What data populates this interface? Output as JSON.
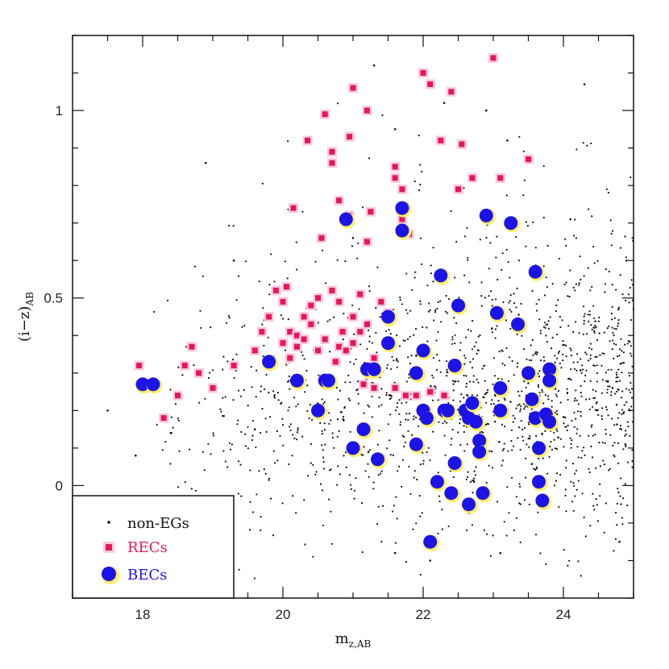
{
  "chart_data": {
    "type": "scatter",
    "title": "",
    "xlabel": "m",
    "xlabel_sub": "z,AB",
    "ylabel": "(i−z)",
    "ylabel_sub": "AB",
    "xlim": [
      17,
      25
    ],
    "ylim": [
      -0.3,
      1.2
    ],
    "x_ticks": [
      18,
      20,
      22,
      24
    ],
    "x_tick_labels": [
      "18",
      "20",
      "22",
      "24"
    ],
    "y_ticks": [
      0,
      0.5,
      1
    ],
    "y_tick_labels": [
      "0",
      "0.5",
      "1"
    ],
    "grid": false,
    "legend_position": "bottom-left",
    "colors": {
      "nonEG": "#111111",
      "REC": "#e8174f",
      "BEC": "#1c14e6",
      "rec_halo": "#ffc8e6",
      "bec_halo": "#ffee66"
    },
    "series": [
      {
        "name": "non-EGs",
        "marker": "dot",
        "generated_dense_cloud": true,
        "points": [
          [
            17.5,
            0.2
          ],
          [
            17.9,
            0.08
          ],
          [
            18.4,
            0.14
          ],
          [
            18.9,
            0.86
          ],
          [
            19.3,
            0.6
          ],
          [
            19.6,
            0.15
          ],
          [
            20.2,
            0.75
          ],
          [
            20.5,
            0.66
          ],
          [
            21.0,
            0.66
          ],
          [
            21.3,
            1.12
          ],
          [
            21.6,
            0.95
          ],
          [
            22.3,
            1.02
          ],
          [
            22.9,
            1.0
          ],
          [
            23.2,
            0.92
          ],
          [
            24.1,
            0.71
          ],
          [
            24.3,
            1.07
          ],
          [
            24.9,
            0.6
          ],
          [
            24.7,
            0.26
          ],
          [
            24.8,
            -0.15
          ],
          [
            22.1,
            -0.2
          ],
          [
            21.6,
            -0.18
          ],
          [
            23.1,
            -0.18
          ]
        ]
      },
      {
        "name": "RECs",
        "marker": "square",
        "points": [
          [
            17.95,
            0.32
          ],
          [
            18.3,
            0.18
          ],
          [
            18.5,
            0.24
          ],
          [
            18.6,
            0.32
          ],
          [
            18.7,
            0.37
          ],
          [
            18.8,
            0.3
          ],
          [
            19.0,
            0.26
          ],
          [
            19.3,
            0.32
          ],
          [
            19.6,
            0.36
          ],
          [
            19.7,
            0.41
          ],
          [
            19.8,
            0.45
          ],
          [
            19.9,
            0.52
          ],
          [
            20.0,
            0.49
          ],
          [
            20.0,
            0.38
          ],
          [
            20.05,
            0.53
          ],
          [
            20.1,
            0.41
          ],
          [
            20.1,
            0.34
          ],
          [
            20.2,
            0.37
          ],
          [
            20.2,
            0.4
          ],
          [
            20.15,
            0.74
          ],
          [
            20.3,
            0.39
          ],
          [
            20.3,
            0.45
          ],
          [
            20.35,
            0.92
          ],
          [
            20.4,
            0.48
          ],
          [
            20.5,
            0.5
          ],
          [
            20.5,
            0.36
          ],
          [
            20.55,
            0.66
          ],
          [
            20.6,
            0.99
          ],
          [
            20.6,
            0.39
          ],
          [
            20.7,
            0.89
          ],
          [
            20.7,
            0.86
          ],
          [
            20.7,
            0.52
          ],
          [
            20.75,
            0.33
          ],
          [
            20.8,
            0.37
          ],
          [
            20.8,
            0.76
          ],
          [
            20.8,
            0.49
          ],
          [
            20.85,
            0.41
          ],
          [
            20.9,
            0.36
          ],
          [
            20.95,
            0.72
          ],
          [
            20.95,
            0.93
          ],
          [
            21.0,
            1.06
          ],
          [
            21.0,
            0.45
          ],
          [
            21.0,
            0.38
          ],
          [
            21.1,
            0.41
          ],
          [
            21.1,
            0.51
          ],
          [
            21.15,
            0.27
          ],
          [
            21.2,
            1.0
          ],
          [
            21.2,
            0.43
          ],
          [
            21.2,
            0.65
          ],
          [
            21.25,
            0.73
          ],
          [
            21.3,
            0.26
          ],
          [
            21.3,
            0.34
          ],
          [
            21.4,
            0.49
          ],
          [
            21.5,
            0.46
          ],
          [
            21.6,
            0.26
          ],
          [
            21.7,
            0.71
          ],
          [
            21.7,
            0.79
          ],
          [
            21.75,
            0.24
          ],
          [
            21.8,
            0.67
          ],
          [
            21.9,
            0.24
          ],
          [
            22.0,
            1.1
          ],
          [
            22.1,
            1.07
          ],
          [
            22.1,
            0.25
          ],
          [
            22.25,
            0.92
          ],
          [
            22.3,
            0.24
          ],
          [
            22.4,
            1.05
          ],
          [
            22.5,
            0.79
          ],
          [
            22.55,
            0.91
          ],
          [
            22.7,
            0.82
          ],
          [
            23.0,
            1.14
          ],
          [
            23.1,
            0.82
          ],
          [
            23.5,
            0.87
          ],
          [
            21.6,
            0.85
          ],
          [
            21.6,
            0.82
          ],
          [
            20.4,
            0.43
          ]
        ]
      },
      {
        "name": "BECs",
        "marker": "circle",
        "points": [
          [
            18.0,
            0.27
          ],
          [
            18.15,
            0.27
          ],
          [
            19.8,
            0.33
          ],
          [
            20.2,
            0.28
          ],
          [
            20.5,
            0.2
          ],
          [
            20.6,
            0.28
          ],
          [
            20.65,
            0.28
          ],
          [
            20.9,
            0.71
          ],
          [
            21.0,
            0.1
          ],
          [
            21.15,
            0.15
          ],
          [
            21.2,
            0.31
          ],
          [
            21.3,
            0.31
          ],
          [
            21.35,
            0.07
          ],
          [
            21.5,
            0.45
          ],
          [
            21.5,
            0.38
          ],
          [
            21.7,
            0.74
          ],
          [
            21.7,
            0.68
          ],
          [
            21.9,
            0.3
          ],
          [
            21.9,
            0.11
          ],
          [
            22.0,
            0.36
          ],
          [
            22.0,
            0.2
          ],
          [
            22.05,
            0.18
          ],
          [
            22.1,
            -0.15
          ],
          [
            22.2,
            0.01
          ],
          [
            22.25,
            0.56
          ],
          [
            22.3,
            0.2
          ],
          [
            22.35,
            0.2
          ],
          [
            22.4,
            -0.02
          ],
          [
            22.45,
            0.32
          ],
          [
            22.45,
            0.06
          ],
          [
            22.5,
            0.48
          ],
          [
            22.6,
            0.2
          ],
          [
            22.65,
            0.18
          ],
          [
            22.65,
            -0.05
          ],
          [
            22.7,
            0.22
          ],
          [
            22.75,
            0.17
          ],
          [
            22.8,
            0.12
          ],
          [
            22.8,
            0.09
          ],
          [
            22.85,
            -0.02
          ],
          [
            22.9,
            0.72
          ],
          [
            23.05,
            0.46
          ],
          [
            23.1,
            0.2
          ],
          [
            23.1,
            0.26
          ],
          [
            23.25,
            0.7
          ],
          [
            23.35,
            0.43
          ],
          [
            23.5,
            0.3
          ],
          [
            23.55,
            0.23
          ],
          [
            23.6,
            0.57
          ],
          [
            23.6,
            0.18
          ],
          [
            23.65,
            0.1
          ],
          [
            23.65,
            0.01
          ],
          [
            23.7,
            -0.04
          ],
          [
            23.75,
            0.19
          ],
          [
            23.8,
            0.17
          ],
          [
            23.8,
            0.31
          ],
          [
            23.8,
            0.28
          ]
        ]
      }
    ]
  }
}
